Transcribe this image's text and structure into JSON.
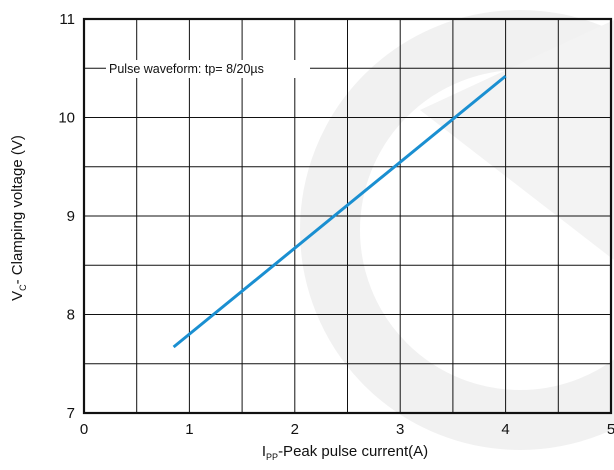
{
  "chart_data": {
    "type": "line",
    "annotation": "Pulse waveform: tp= 8/20µs",
    "x_label": {
      "main": "I",
      "sub": "PP",
      "rest": "-Peak pulse current(A)"
    },
    "y_label": {
      "main": "V",
      "sub": "C",
      "rest": "- Clamping voltage (V)"
    },
    "xlim": [
      0,
      5
    ],
    "ylim": [
      7,
      11
    ],
    "x_ticks": [
      0,
      1,
      2,
      3,
      4,
      5
    ],
    "y_ticks": [
      7,
      8,
      9,
      10,
      11
    ],
    "x_tick_labels": [
      "0",
      "1",
      "2",
      "3",
      "4",
      "5"
    ],
    "y_tick_labels": [
      "7",
      "8",
      "9",
      "10",
      "11"
    ],
    "grid": true,
    "grid_x_step": 0.5,
    "grid_y_step": 0.5,
    "series": [
      {
        "color": "#1a8fd1",
        "x": [
          0.85,
          4.0
        ],
        "y": [
          7.67,
          10.42
        ]
      }
    ],
    "watermark_color": "#f1f1f1"
  }
}
